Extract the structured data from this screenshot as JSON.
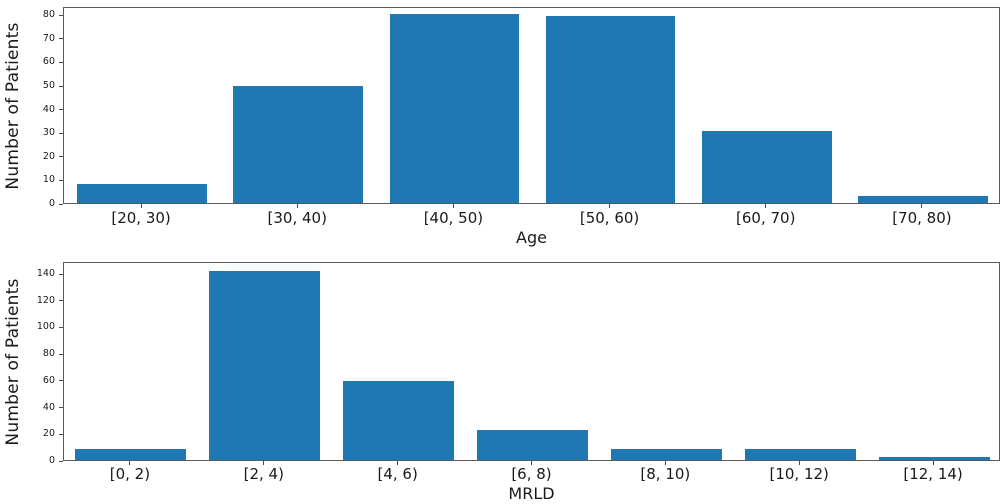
{
  "figure": {
    "background": "#ffffff",
    "text_color": "#1a1a1a",
    "spine_color": "#5a5a5a"
  },
  "chart_data": [
    {
      "type": "bar",
      "title": "",
      "categories": [
        "[20, 30)",
        "[30, 40)",
        "[40, 50)",
        "[50, 60)",
        "[60, 70)",
        "[70, 80)"
      ],
      "values": [
        8,
        50,
        81,
        80,
        31,
        3
      ],
      "xlabel": "Age",
      "ylabel": "Number of Patients",
      "yticks": [
        0,
        10,
        20,
        30,
        40,
        50,
        60,
        70,
        80
      ],
      "ylim": [
        0,
        83.5
      ],
      "bar_color": "#1f77b4",
      "grid": false,
      "legend": null
    },
    {
      "type": "bar",
      "title": "",
      "categories": [
        "[0, 2)",
        "[2, 4)",
        "[4, 6)",
        "[6, 8)",
        "[8, 10)",
        "[10, 12)",
        "[12, 14)"
      ],
      "values": [
        8,
        143,
        60,
        23,
        8,
        8,
        2
      ],
      "xlabel": "MRLD",
      "ylabel": "Number of Patients",
      "yticks": [
        0,
        20,
        40,
        60,
        80,
        100,
        120,
        140
      ],
      "ylim": [
        0,
        149
      ],
      "bar_color": "#1f77b4",
      "grid": false,
      "legend": null
    }
  ]
}
